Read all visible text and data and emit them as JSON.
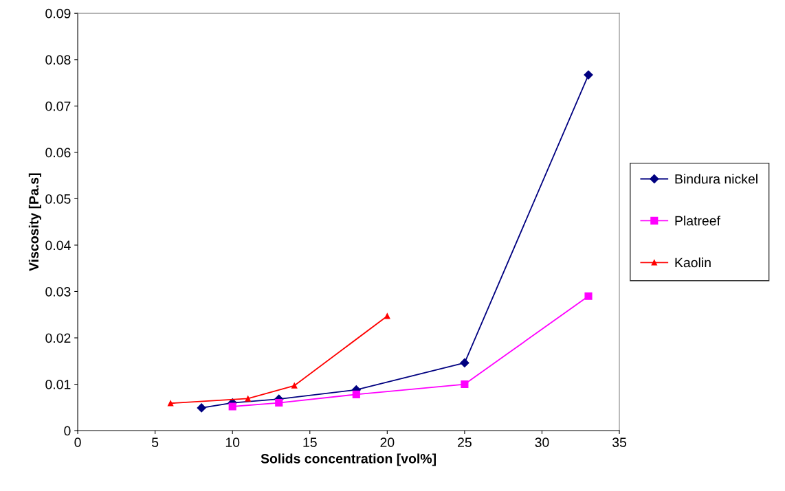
{
  "chart_data": {
    "type": "line",
    "xlabel": "Solids concentration [vol%]",
    "ylabel": "Viscosity [Pa.s]",
    "xlim": [
      0,
      35
    ],
    "xticks": [
      0,
      5,
      10,
      15,
      20,
      25,
      30,
      35
    ],
    "ylim": [
      0,
      0.09
    ],
    "yticks": [
      {
        "value": 0,
        "label": "0"
      },
      {
        "value": 0.01,
        "label": "0.01"
      },
      {
        "value": 0.02,
        "label": "0.02"
      },
      {
        "value": 0.03,
        "label": "0.03"
      },
      {
        "value": 0.04,
        "label": "0.04"
      },
      {
        "value": 0.05,
        "label": "0.05"
      },
      {
        "value": 0.06,
        "label": "0.06"
      },
      {
        "value": 0.07,
        "label": "0.07"
      },
      {
        "value": 0.08,
        "label": "0.08"
      },
      {
        "value": 0.09,
        "label": "0.09"
      }
    ],
    "grid": false,
    "legend": "right",
    "line_style": "solid",
    "series": [
      {
        "name": "Bindura nickel",
        "color": "#000080",
        "marker": "diamond",
        "x": [
          8,
          10,
          13,
          18,
          25,
          33
        ],
        "values": [
          0.0049,
          0.006,
          0.0068,
          0.0088,
          0.0146,
          0.0767
        ]
      },
      {
        "name": "Platreef",
        "color": "#ff00ff",
        "marker": "square",
        "x": [
          10,
          13,
          18,
          25,
          33
        ],
        "values": [
          0.0052,
          0.006,
          0.0078,
          0.01,
          0.029
        ]
      },
      {
        "name": "Kaolin",
        "color": "#ff0000",
        "marker": "triangle",
        "x": [
          6,
          11,
          14,
          20
        ],
        "values": [
          0.0059,
          0.0069,
          0.0097,
          0.0247
        ]
      }
    ]
  }
}
